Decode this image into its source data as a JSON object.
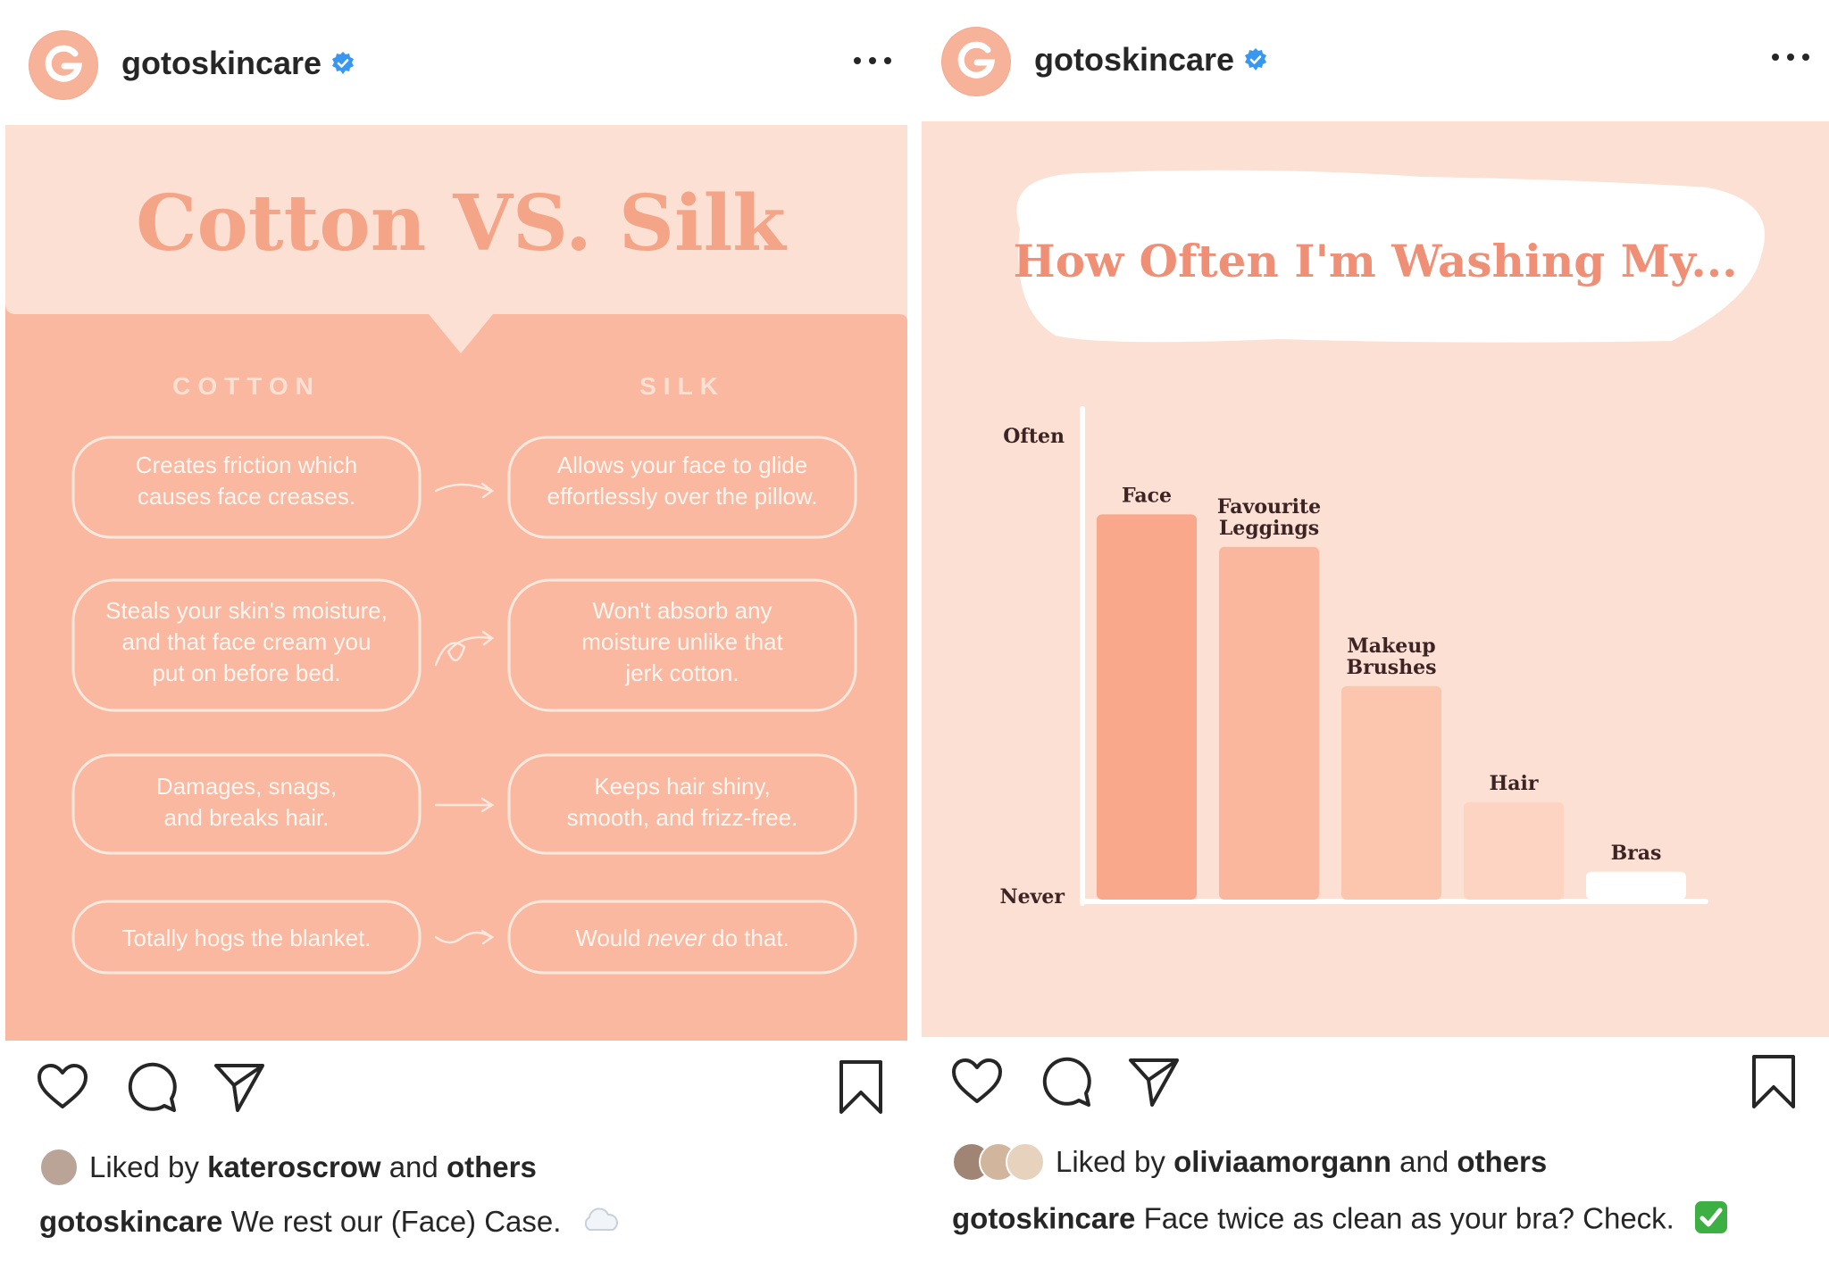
{
  "posts": [
    {
      "username": "gotoskincare",
      "verified": true,
      "image": {
        "title": "Cotton VS. Silk",
        "columns": [
          "COTTON",
          "SILK"
        ],
        "rows": [
          {
            "cotton": "Creates friction which causes face creases.",
            "silk": "Allows your face to glide effortlessly over the pillow."
          },
          {
            "cotton": "Steals your skin's moisture, and that face cream you put on before bed.",
            "silk": "Won't absorb any moisture unlike that jerk cotton."
          },
          {
            "cotton": "Damages, snags, and breaks hair.",
            "silk": "Keeps hair shiny, smooth, and frizz-free."
          },
          {
            "cotton": "Totally hogs the blanket.",
            "silk_prefix": "Would ",
            "silk_em": "never",
            "silk_suffix": " do that."
          }
        ]
      },
      "likes": {
        "prefix": "Liked by ",
        "user": "kateroscrow",
        "middle": " and ",
        "others": "others"
      },
      "caption": {
        "user": "gotoskincare",
        "text": "We rest our (Face) Case."
      }
    },
    {
      "username": "gotoskincare",
      "verified": true,
      "image": {
        "chart_data": {
          "type": "bar",
          "title": "How Often I'm Washing My...",
          "categories": [
            "Face",
            "Favourite Leggings",
            "Makeup Brushes",
            "Hair",
            "Bras"
          ],
          "values": [
            0.83,
            0.76,
            0.46,
            0.21,
            0.06
          ],
          "y_axis_labels": {
            "top": "Often",
            "bottom": "Never"
          },
          "ylim": [
            0,
            1
          ],
          "colors": [
            "#f9a88c",
            "#fbb79e",
            "#fcc5ae",
            "#fdd4c2",
            "#ffffff"
          ],
          "grid": false,
          "legend": "none"
        }
      },
      "likes": {
        "prefix": "Liked by ",
        "user": "oliviaamorgann",
        "middle": " and ",
        "others": "others"
      },
      "caption": {
        "user": "gotoskincare",
        "text": "Face twice as clean as your bra? Check."
      }
    }
  ]
}
